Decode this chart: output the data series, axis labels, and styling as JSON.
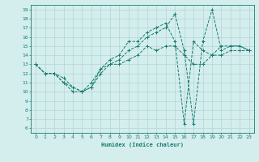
{
  "xlabel": "Humidex (Indice chaleur)",
  "xlim": [
    -0.5,
    23.5
  ],
  "ylim": [
    5.5,
    19.5
  ],
  "yticks": [
    6,
    7,
    8,
    9,
    10,
    11,
    12,
    13,
    14,
    15,
    16,
    17,
    18,
    19
  ],
  "xticks": [
    0,
    1,
    2,
    3,
    4,
    5,
    6,
    7,
    8,
    9,
    10,
    11,
    12,
    13,
    14,
    15,
    16,
    17,
    18,
    19,
    20,
    21,
    22,
    23
  ],
  "line_color": "#1a7a6e",
  "bg_color": "#d4eeee",
  "grid_color": "#b8d8d8",
  "series1_x": [
    0,
    1,
    2,
    3,
    4,
    5,
    6,
    7,
    8,
    9,
    10,
    11,
    12,
    13,
    14,
    15,
    16,
    17,
    18,
    19,
    20,
    21,
    22,
    23
  ],
  "series1_y": [
    13,
    12,
    12,
    11,
    10.5,
    10,
    10.5,
    12,
    13,
    13,
    13.5,
    14,
    15,
    14.5,
    15,
    15,
    14,
    13,
    13,
    14,
    15,
    15,
    15,
    14.5
  ],
  "series2_x": [
    0,
    1,
    2,
    3,
    4,
    5,
    6,
    7,
    8,
    9,
    10,
    11,
    12,
    13,
    14,
    15,
    16,
    17,
    18,
    19,
    20,
    21,
    22,
    23
  ],
  "series2_y": [
    13,
    12,
    12,
    11,
    10,
    10,
    10.5,
    12.5,
    13,
    13.5,
    14.5,
    15,
    16,
    16.5,
    17,
    18.5,
    14.5,
    6.5,
    15.5,
    19,
    14.5,
    15,
    15,
    14.5
  ],
  "series3_x": [
    0,
    1,
    2,
    3,
    4,
    5,
    6,
    7,
    8,
    9,
    10,
    11,
    12,
    13,
    14,
    15,
    16,
    17,
    18,
    19,
    20,
    21,
    22,
    23
  ],
  "series3_y": [
    13,
    12,
    12,
    11.5,
    10.5,
    10,
    11,
    12.5,
    13.5,
    14,
    15.5,
    15.5,
    16.5,
    17,
    17.5,
    15.5,
    6.5,
    15.5,
    14.5,
    14,
    14,
    14.5,
    14.5,
    14.5
  ]
}
